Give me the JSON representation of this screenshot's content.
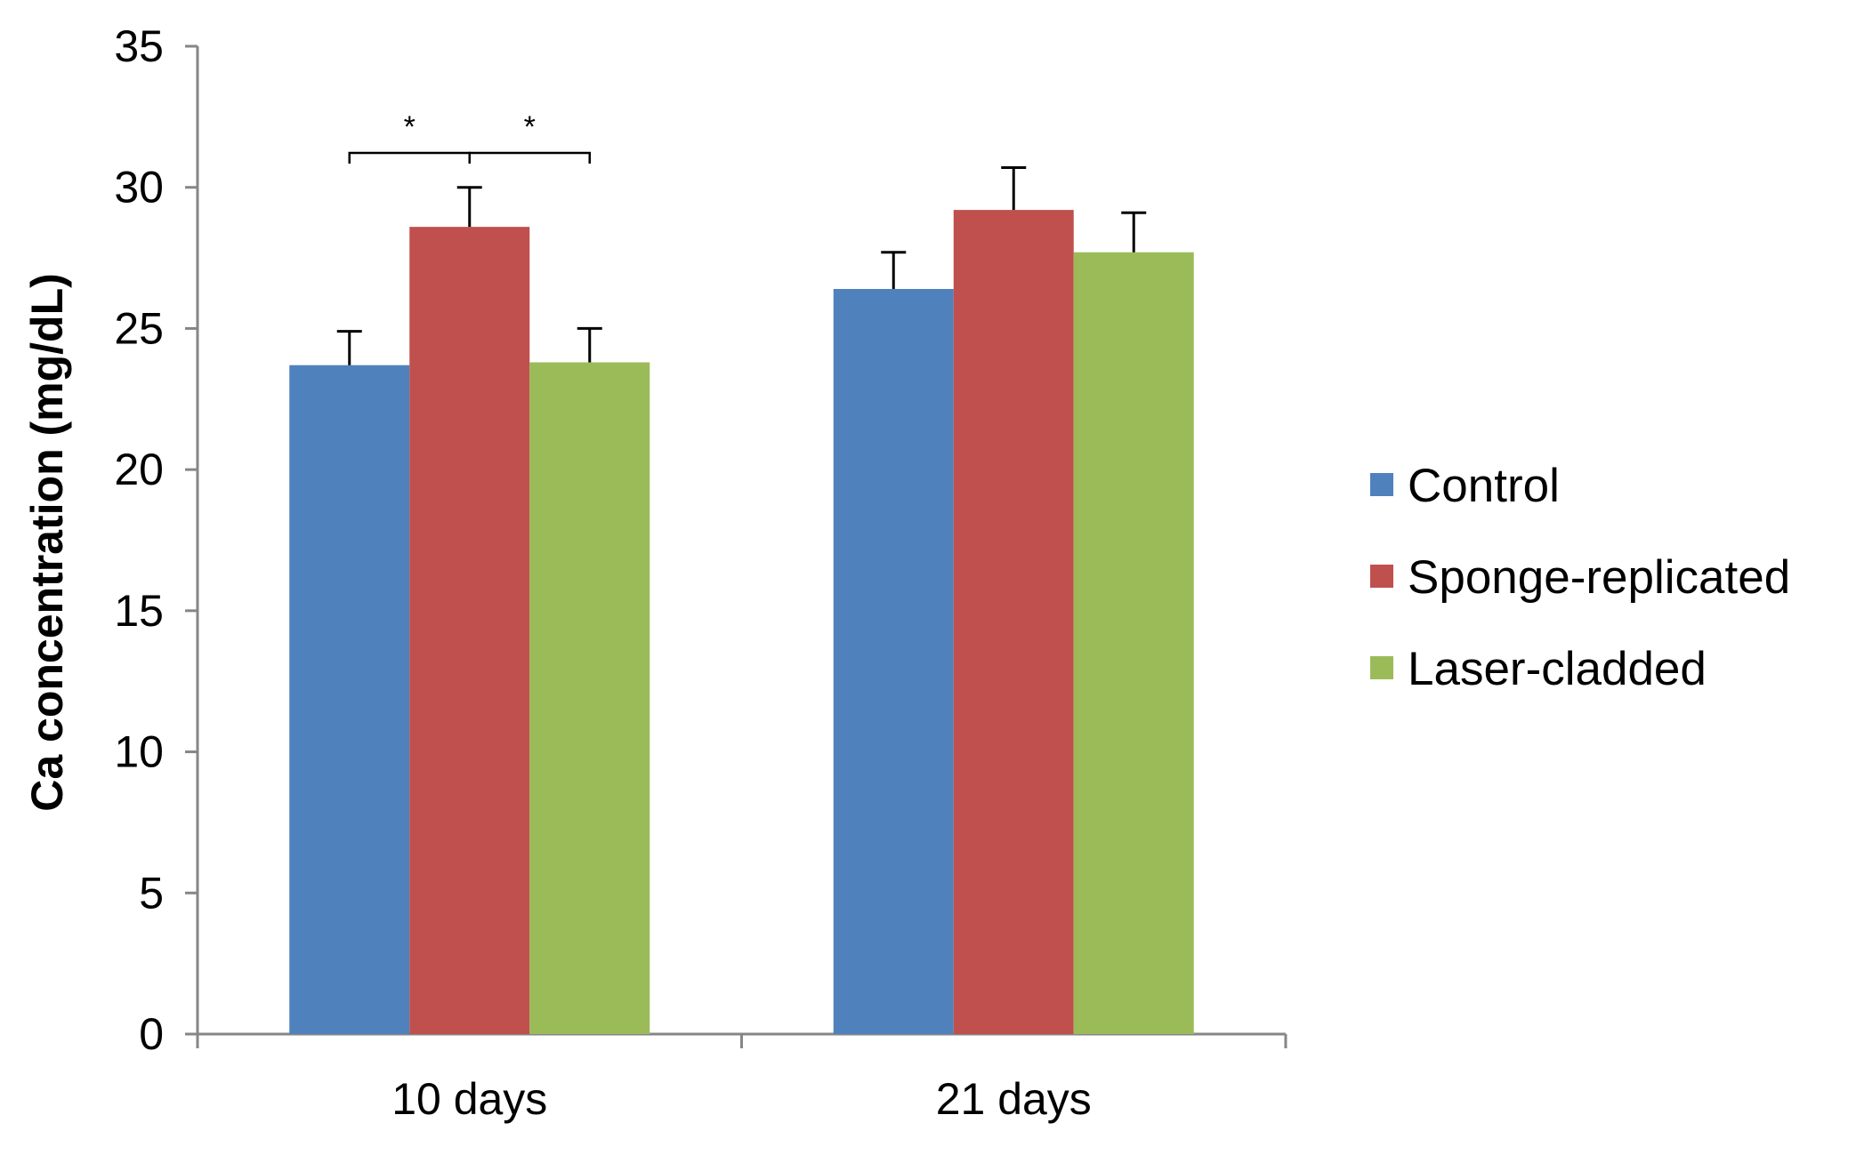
{
  "chart_data": {
    "type": "bar",
    "title": "",
    "xlabel": "",
    "ylabel": "Ca concentration (mg/dL)",
    "ylim": [
      0,
      35
    ],
    "yticks": [
      0,
      5,
      10,
      15,
      20,
      25,
      30,
      35
    ],
    "categories": [
      "10 days",
      "21 days"
    ],
    "series": [
      {
        "name": "Control",
        "values": [
          23.7,
          26.4
        ],
        "errors": [
          1.2,
          1.3
        ],
        "color": "#4F81BD"
      },
      {
        "name": "Sponge-replicated",
        "values": [
          28.6,
          29.2
        ],
        "errors": [
          1.4,
          1.5
        ],
        "color": "#C0504D"
      },
      {
        "name": "Laser-cladded",
        "values": [
          23.8,
          27.7
        ],
        "errors": [
          1.2,
          1.4
        ],
        "color": "#9BBB59"
      }
    ],
    "error_bar_color": "#000000",
    "grid": false,
    "legend_position": "right",
    "significance": [
      {
        "category": "10 days",
        "between": [
          "Control",
          "Sponge-replicated"
        ],
        "label": "*"
      },
      {
        "category": "10 days",
        "between": [
          "Sponge-replicated",
          "Laser-cladded"
        ],
        "label": "*"
      }
    ]
  }
}
